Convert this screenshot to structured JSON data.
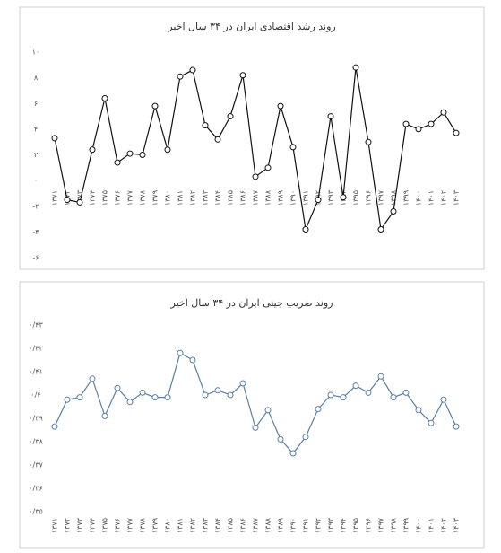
{
  "chart_data": [
    {
      "type": "line",
      "title": "روند رشد اقتصادی ایران در ۳۴ سال اخیر",
      "categories": [
        "۱۳۷۱",
        "۱۳۷۲",
        "۱۳۷۳",
        "۱۳۷۴",
        "۱۳۷۵",
        "۱۳۷۶",
        "۱۳۷۷",
        "۱۳۷۸",
        "۱۳۷۹",
        "۱۳۸۰",
        "۱۳۸۱",
        "۱۳۸۲",
        "۱۳۸۳",
        "۱۳۸۴",
        "۱۳۸۵",
        "۱۳۸۶",
        "۱۳۸۷",
        "۱۳۸۸",
        "۱۳۸۹",
        "۱۳۹۰",
        "۱۳۹۱",
        "۱۳۹۲",
        "۱۳۹۳",
        "۱۳۹۴",
        "۱۳۹۵",
        "۱۳۹۶",
        "۱۳۹۷",
        "۱۳۹۸",
        "۱۳۹۹",
        "۱۴۰۰",
        "۱۴۰۱",
        "۱۴۰۲",
        "۱۴۰۳"
      ],
      "values": [
        3.3,
        -1.5,
        -1.7,
        2.4,
        6.4,
        1.4,
        2.1,
        2.0,
        5.8,
        2.4,
        8.1,
        8.6,
        4.3,
        3.2,
        5.0,
        8.2,
        0.3,
        1.0,
        5.8,
        2.6,
        -3.8,
        -1.5,
        5.0,
        -1.3,
        8.8,
        3.0,
        -3.8,
        -2.4,
        4.4,
        4.0,
        4.4,
        5.3,
        3.7
      ],
      "color": "#111111",
      "marker_fill": "#ffffff",
      "grid": false,
      "ylim": [
        -6,
        10
      ],
      "yticks": [
        {
          "value": -6,
          "label": "-۶"
        },
        {
          "value": -4,
          "label": "-۴"
        },
        {
          "value": -2,
          "label": "-۲"
        },
        {
          "value": 0,
          "label": "۰"
        },
        {
          "value": 2,
          "label": "۲"
        },
        {
          "value": 4,
          "label": "۴"
        },
        {
          "value": 6,
          "label": "۶"
        },
        {
          "value": 8,
          "label": "۸"
        },
        {
          "value": 10,
          "label": "۱۰"
        }
      ]
    },
    {
      "type": "line",
      "title": "روند ضریب جینی ایران در ۳۴ سال اخیر",
      "categories": [
        "۱۳۷۱",
        "۱۳۷۲",
        "۱۳۷۳",
        "۱۳۷۴",
        "۱۳۷۵",
        "۱۳۷۶",
        "۱۳۷۷",
        "۱۳۷۸",
        "۱۳۷۹",
        "۱۳۸۰",
        "۱۳۸۱",
        "۱۳۸۲",
        "۱۳۸۳",
        "۱۳۸۴",
        "۱۳۸۵",
        "۱۳۸۶",
        "۱۳۸۷",
        "۱۳۸۸",
        "۱۳۸۹",
        "۱۳۹۰",
        "۱۳۹۱",
        "۱۳۹۲",
        "۱۳۹۳",
        "۱۳۹۴",
        "۱۳۹۵",
        "۱۳۹۶",
        "۱۳۹۷",
        "۱۳۹۸",
        "۱۳۹۹",
        "۱۴۰۰",
        "۱۴۰۱",
        "۱۴۰۲",
        "۱۴۰۳"
      ],
      "values": [
        0.3865,
        0.398,
        0.399,
        0.407,
        0.391,
        0.403,
        0.397,
        0.401,
        0.399,
        0.399,
        0.418,
        0.415,
        0.4,
        0.402,
        0.4,
        0.405,
        0.386,
        0.3935,
        0.381,
        0.375,
        0.382,
        0.394,
        0.4,
        0.399,
        0.404,
        0.401,
        0.408,
        0.399,
        0.401,
        0.3935,
        0.388,
        0.398,
        0.3865
      ],
      "color": "#5b7fa6",
      "marker_fill": "#ffffff",
      "grid": false,
      "ylim": [
        0.35,
        0.43
      ],
      "yticks": [
        {
          "value": 0.35,
          "label": "۰/۳۵"
        },
        {
          "value": 0.36,
          "label": "۰/۳۶"
        },
        {
          "value": 0.37,
          "label": "۰/۳۷"
        },
        {
          "value": 0.38,
          "label": "۰/۳۸"
        },
        {
          "value": 0.39,
          "label": "۰/۳۹"
        },
        {
          "value": 0.4,
          "label": "۰/۴"
        },
        {
          "value": 0.41,
          "label": "۰/۴۱"
        },
        {
          "value": 0.42,
          "label": "۰/۴۲"
        },
        {
          "value": 0.43,
          "label": "۰/۴۳"
        }
      ]
    }
  ]
}
